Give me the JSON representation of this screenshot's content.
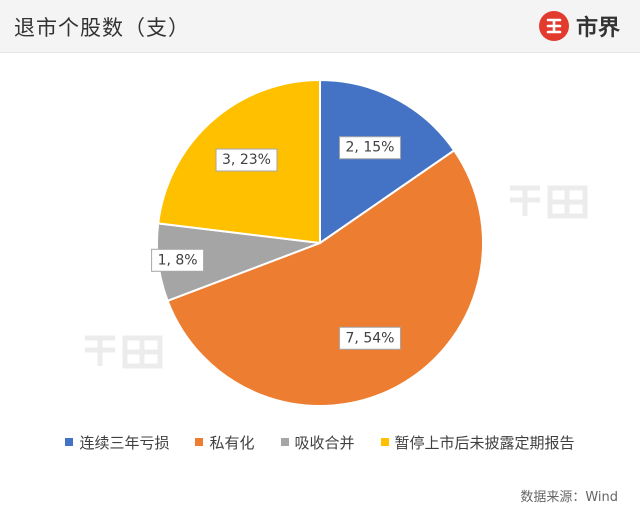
{
  "header": {
    "title": "退市个股数（支）",
    "brand_name": "市界"
  },
  "chart_data": {
    "type": "pie",
    "title": "退市个股数（支）",
    "start_angle_deg": 0,
    "direction": "clockwise",
    "slices": [
      {
        "name": "连续三年亏损",
        "value": 2,
        "percent": 15,
        "label": "2, 15%",
        "color": "#4472C4"
      },
      {
        "name": "私有化",
        "value": 7,
        "percent": 54,
        "label": "7, 54%",
        "color": "#ED7D31"
      },
      {
        "name": "吸收合并",
        "value": 1,
        "percent": 8,
        "label": "1, 8%",
        "color": "#A5A5A5"
      },
      {
        "name": "暂停上市后未披露定期报告",
        "value": 3,
        "percent": 23,
        "label": "3, 23%",
        "color": "#FFC000"
      }
    ],
    "legend_position": "bottom"
  },
  "source": "数据来源：Wind"
}
